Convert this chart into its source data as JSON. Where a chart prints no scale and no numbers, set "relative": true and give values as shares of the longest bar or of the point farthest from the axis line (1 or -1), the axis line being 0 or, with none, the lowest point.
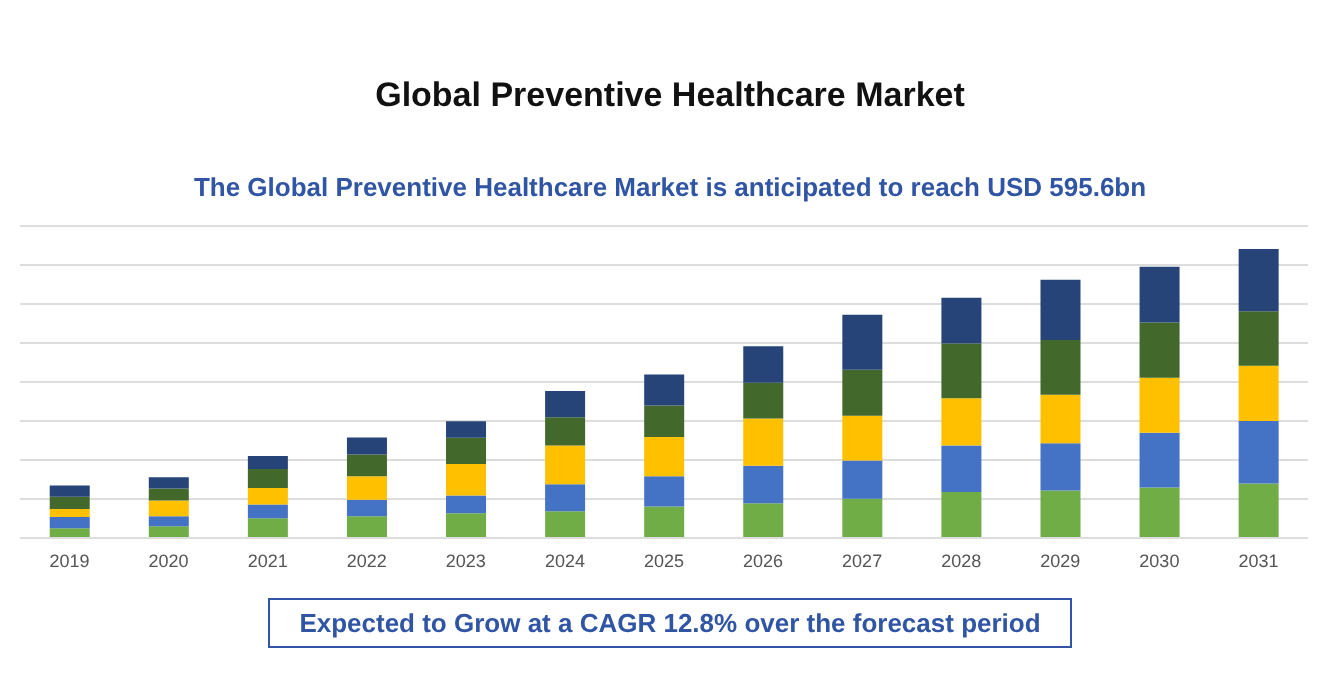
{
  "chart_data": {
    "type": "bar",
    "title": "Global Preventive Healthcare Market",
    "subtitle": "The Global Preventive Healthcare Market is anticipated to reach USD 595.6bn",
    "annotations": [
      "Expected to Grow at a CAGR 12.8% over the forecast period"
    ],
    "categories": [
      "2019",
      "2020",
      "2021",
      "2022",
      "2023",
      "2024",
      "2025",
      "2026",
      "2027",
      "2028",
      "2029",
      "2030",
      "2031"
    ],
    "stacked": true,
    "relative": true,
    "grid": "y",
    "legend": false,
    "series": [
      {
        "color": "#70ad47",
        "values": [
          0.034,
          0.041,
          0.068,
          0.075,
          0.086,
          0.093,
          0.109,
          0.12,
          0.136,
          0.159,
          0.164,
          0.175,
          0.189
        ]
      },
      {
        "color": "#4472c4",
        "values": [
          0.039,
          0.034,
          0.048,
          0.057,
          0.061,
          0.093,
          0.105,
          0.13,
          0.132,
          0.161,
          0.164,
          0.189,
          0.216
        ]
      },
      {
        "color": "#ffc000",
        "values": [
          0.027,
          0.055,
          0.057,
          0.082,
          0.109,
          0.134,
          0.136,
          0.164,
          0.155,
          0.164,
          0.168,
          0.191,
          0.191
        ]
      },
      {
        "color": "#43682b",
        "values": [
          0.043,
          0.041,
          0.066,
          0.075,
          0.091,
          0.098,
          0.109,
          0.123,
          0.159,
          0.189,
          0.189,
          0.191,
          0.189
        ]
      },
      {
        "color": "#264478",
        "values": [
          0.039,
          0.039,
          0.045,
          0.059,
          0.057,
          0.091,
          0.107,
          0.127,
          0.191,
          0.159,
          0.209,
          0.193,
          0.215
        ]
      }
    ]
  }
}
